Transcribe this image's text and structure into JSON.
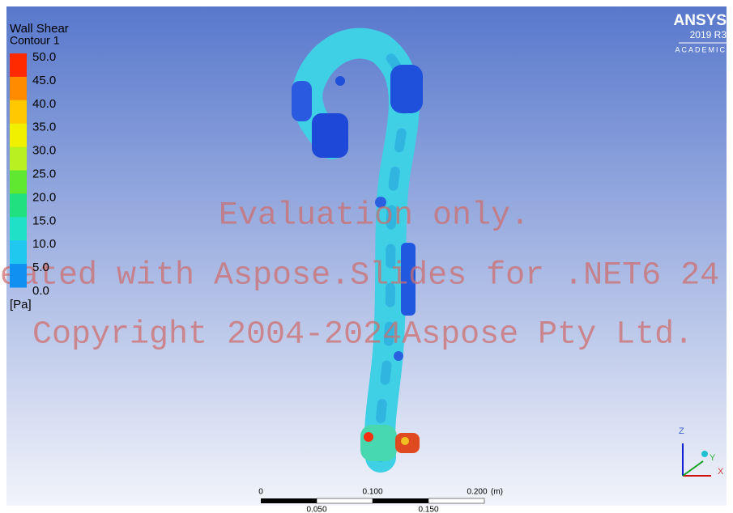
{
  "legend": {
    "title": "Wall Shear",
    "subtitle": "Contour 1",
    "levels": [
      "50.0",
      "45.0",
      "40.0",
      "35.0",
      "30.0",
      "25.0",
      "20.0",
      "15.0",
      "10.0",
      "5.0",
      "0.0"
    ],
    "unit": "[Pa]"
  },
  "logo": {
    "brand": "ANSYS",
    "version": "2019 R3",
    "edition": "ACADEMIC"
  },
  "watermark": {
    "line1": "Evaluation only.",
    "line2": "eated with Aspose.Slides for .NET6 24",
    "line3": "Copyright 2004-2024Aspose Pty Ltd."
  },
  "scale_bar": {
    "top_labels": [
      "0",
      "0.100",
      "0.200"
    ],
    "unit": "(m)",
    "bottom_labels": [
      "0.050",
      "0.150"
    ]
  },
  "triad": {
    "z": "Z",
    "y": "Y",
    "x": "X"
  }
}
